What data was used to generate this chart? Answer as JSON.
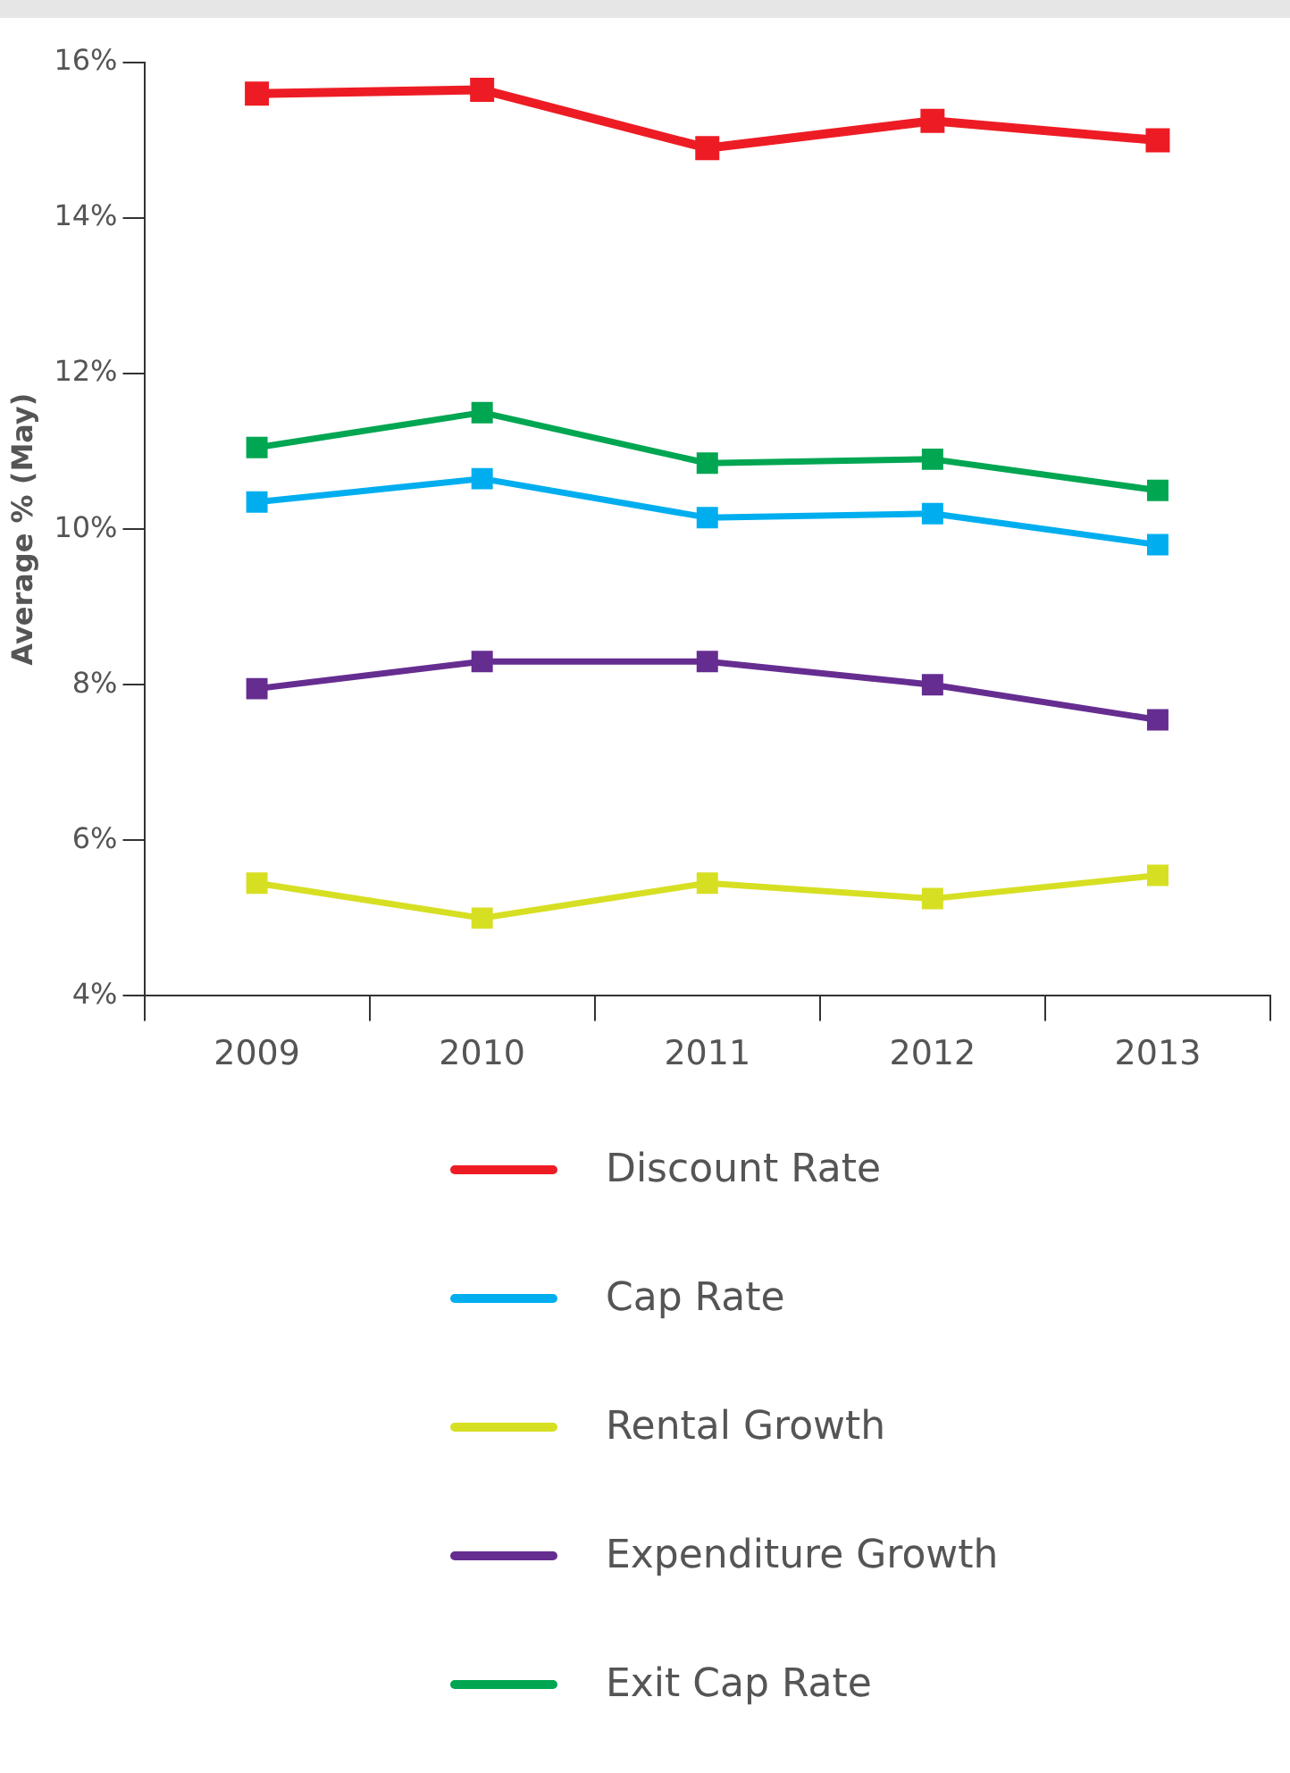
{
  "chart_data": {
    "type": "line",
    "ylabel": "Average % (May)",
    "categories": [
      "2009",
      "2010",
      "2011",
      "2012",
      "2013"
    ],
    "series": [
      {
        "name": "Discount Rate",
        "color": "#ed1c24",
        "values": [
          15.6,
          15.65,
          14.9,
          15.25,
          15.0
        ]
      },
      {
        "name": "Cap Rate",
        "color": "#00aeef",
        "values": [
          10.35,
          10.65,
          10.15,
          10.2,
          9.8
        ]
      },
      {
        "name": "Rental Growth",
        "color": "#d7df23",
        "values": [
          5.45,
          5.0,
          5.45,
          5.25,
          5.55
        ]
      },
      {
        "name": "Expenditure Growth",
        "color": "#662d91",
        "values": [
          7.95,
          8.3,
          8.3,
          8.0,
          7.55
        ]
      },
      {
        "name": "Exit Cap Rate",
        "color": "#00a651",
        "values": [
          11.05,
          11.5,
          10.85,
          10.9,
          10.5
        ]
      }
    ],
    "ylim": [
      4,
      16
    ],
    "yticks": [
      {
        "value": 4,
        "label": "4%"
      },
      {
        "value": 6,
        "label": "6%"
      },
      {
        "value": 8,
        "label": "8%"
      },
      {
        "value": 10,
        "label": "10%"
      },
      {
        "value": 12,
        "label": "12%"
      },
      {
        "value": 14,
        "label": "14%"
      },
      {
        "value": 16,
        "label": "16%"
      }
    ],
    "grid": false,
    "legend": "bottom",
    "marker": "square",
    "line_style": "solid"
  }
}
